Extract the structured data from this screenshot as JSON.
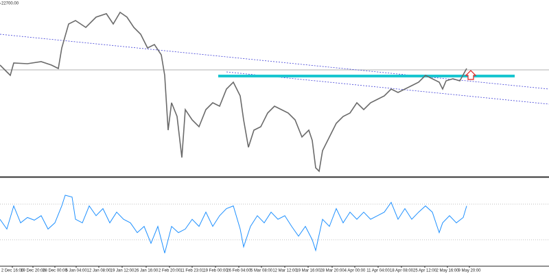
{
  "chart_data": [
    {
      "type": "line",
      "x": [
        0,
        10,
        15,
        20,
        40,
        60,
        75,
        85,
        90,
        100,
        110,
        125,
        140,
        155,
        165,
        175,
        185,
        195,
        205,
        215,
        225,
        235,
        240,
        245,
        250,
        258,
        265,
        270,
        280,
        290,
        300,
        310,
        320,
        330,
        340,
        350,
        355,
        362,
        370,
        380,
        390,
        400,
        410,
        420,
        430,
        440,
        450,
        455,
        460,
        465,
        470,
        480,
        490,
        500,
        510,
        520,
        530,
        540,
        550,
        560,
        570,
        580,
        590,
        600,
        610,
        620,
        630,
        640,
        645,
        650,
        660,
        670,
        680
      ],
      "series": [
        {
          "color": "#6a6a6a",
          "values": [
            21800,
            21700,
            21650,
            21830,
            21820,
            21850,
            21800,
            21750,
            22050,
            22400,
            22450,
            22350,
            22500,
            22550,
            22400,
            22570,
            22500,
            22350,
            22250,
            22050,
            22100,
            21950,
            21650,
            20850,
            21250,
            21050,
            20450,
            21150,
            21000,
            20900,
            21150,
            21250,
            21200,
            21450,
            21550,
            21350,
            21000,
            20600,
            20850,
            20900,
            21100,
            21200,
            21150,
            21100,
            21000,
            20750,
            20850,
            20700,
            20300,
            20250,
            20550,
            20750,
            20950,
            21050,
            21100,
            21250,
            21150,
            21250,
            21300,
            21350,
            21450,
            21400,
            21450,
            21500,
            21550,
            21650,
            21600,
            21550,
            21450,
            21570,
            21600,
            21570,
            21750
          ]
        }
      ],
      "xlim": [
        0,
        800
      ],
      "ylim": [
        20170,
        22750
      ],
      "yticks": [
        {
          "value": 22700,
          "label": "22700.00"
        }
      ],
      "hline": 21730,
      "resistance": {
        "x": [
          318,
          750
        ],
        "value": 21640,
        "color": "#19c6d0"
      },
      "trendlines": [
        {
          "x": [
            0,
            800
          ],
          "values": [
            22250,
            21450
          ],
          "color": "#3b3bd6"
        },
        {
          "x": [
            330,
            800
          ],
          "values": [
            21700,
            21230
          ],
          "color": "#3b3bd6"
        }
      ],
      "xticks": [
        {
          "value": 18,
          "label": "2 Dec 16:00"
        },
        {
          "value": 48,
          "label": "19 Dec 20:00"
        },
        {
          "value": 80,
          "label": "28 Dec 00:00"
        },
        {
          "value": 111,
          "label": "5 Jan 04:00"
        },
        {
          "value": 144,
          "label": "12 Jan 08:00"
        },
        {
          "value": 178,
          "label": "19 Jan 12:00"
        },
        {
          "value": 213,
          "label": "26 Jan 16:00"
        },
        {
          "value": 247,
          "label": "2 Feb 20:00"
        },
        {
          "value": 280,
          "label": "11 Feb 23:01"
        },
        {
          "value": 314,
          "label": "19 Feb 00:00"
        },
        {
          "value": 348,
          "label": "26 Feb 04:00"
        },
        {
          "value": 381,
          "label": "5 Mar 08:00"
        },
        {
          "value": 415,
          "label": "12 Mar 12:00"
        },
        {
          "value": 449,
          "label": "19 Mar 16:00"
        },
        {
          "value": 484,
          "label": "28 Mar 20:00"
        },
        {
          "value": 517,
          "label": "4 Apr 00:00"
        },
        {
          "value": 551,
          "label": "11 Apr 04:00"
        },
        {
          "value": 585,
          "label": "18 Apr 08:00"
        },
        {
          "value": 619,
          "label": "25 Apr 12:00"
        },
        {
          "value": 652,
          "label": "2 May 16:00"
        },
        {
          "value": 684,
          "label": "9 May 20:00"
        }
      ]
    },
    {
      "type": "line",
      "x": [
        0,
        10,
        20,
        30,
        40,
        50,
        60,
        70,
        80,
        90,
        95,
        105,
        110,
        120,
        130,
        140,
        150,
        160,
        170,
        180,
        190,
        200,
        210,
        220,
        230,
        240,
        250,
        260,
        270,
        280,
        290,
        300,
        310,
        320,
        330,
        340,
        350,
        355,
        365,
        375,
        385,
        395,
        405,
        415,
        425,
        435,
        445,
        455,
        460,
        470,
        480,
        490,
        500,
        510,
        520,
        530,
        540,
        550,
        560,
        570,
        580,
        590,
        600,
        610,
        620,
        630,
        640,
        645,
        655,
        665,
        675,
        680
      ],
      "series": [
        {
          "color": "#1e90ff",
          "values": [
            53,
            42,
            68,
            49,
            55,
            52,
            57,
            42,
            49,
            68,
            80,
            78,
            53,
            49,
            68,
            57,
            65,
            49,
            61,
            53,
            49,
            38,
            45,
            26,
            45,
            15,
            45,
            38,
            42,
            53,
            45,
            61,
            45,
            57,
            65,
            68,
            42,
            22,
            45,
            57,
            49,
            61,
            53,
            57,
            45,
            34,
            45,
            30,
            18,
            53,
            45,
            65,
            49,
            61,
            53,
            61,
            53,
            57,
            61,
            72,
            53,
            65,
            53,
            61,
            68,
            61,
            38,
            49,
            57,
            49,
            55,
            68
          ]
        }
      ],
      "xlim": [
        0,
        800
      ],
      "ylim": [
        0,
        100
      ],
      "levels": [
        70,
        30
      ]
    }
  ]
}
